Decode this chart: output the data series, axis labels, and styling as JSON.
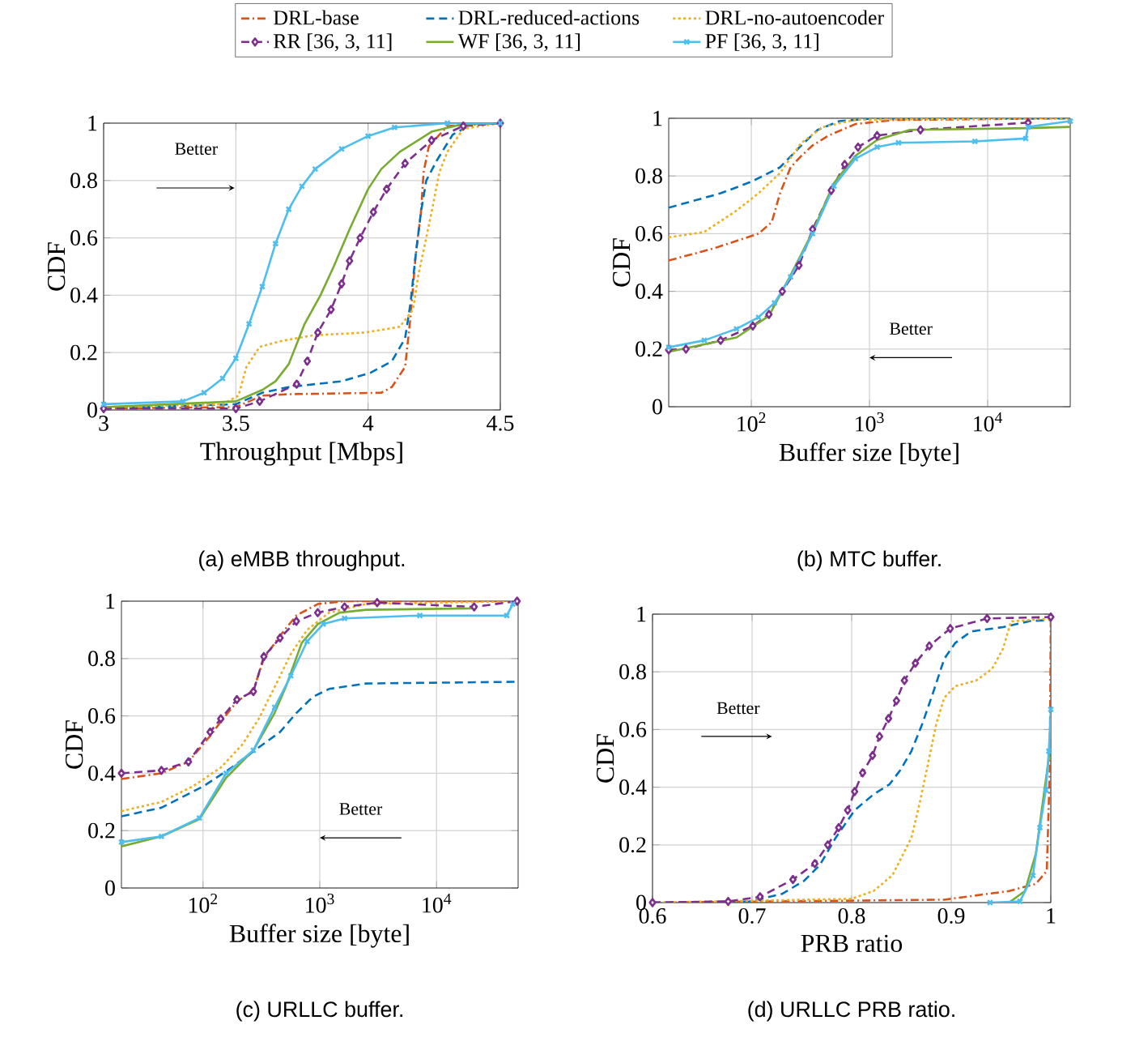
{
  "chart_data": [
    {
      "type": "line",
      "title": "(a) eMBB throughput.",
      "xlabel": "Throughput [Mbps]",
      "ylabel": "CDF",
      "xlim": [
        3,
        4.5
      ],
      "ylim": [
        0,
        1
      ],
      "xticks": [
        3,
        3.5,
        4,
        4.5
      ],
      "yticks": [
        0,
        0.2,
        0.4,
        0.6,
        0.8,
        1
      ],
      "grid": true,
      "legend": "top",
      "annotations": [
        "Better"
      ],
      "series": [
        {
          "name": "DRL-base",
          "color": "#d95319",
          "line_style": "dashdot",
          "marker": "none",
          "x": [
            3,
            3.5,
            3.6,
            3.7,
            4.05,
            4.09,
            4.14,
            4.16,
            4.18,
            4.2,
            4.21,
            4.23,
            4.3,
            4.5
          ],
          "values": [
            0.005,
            0.01,
            0.05,
            0.055,
            0.06,
            0.08,
            0.15,
            0.32,
            0.54,
            0.69,
            0.83,
            0.92,
            0.99,
            1
          ]
        },
        {
          "name": "DRL-reduced-actions",
          "color": "#0072bd",
          "line_style": "dashed",
          "marker": "none",
          "x": [
            3,
            3.5,
            3.6,
            3.7,
            3.9,
            4.01,
            4.09,
            4.14,
            4.16,
            4.18,
            4.2,
            4.22,
            4.26,
            4.32,
            4.4,
            4.5
          ],
          "values": [
            0.005,
            0.02,
            0.06,
            0.08,
            0.1,
            0.13,
            0.17,
            0.25,
            0.37,
            0.54,
            0.69,
            0.8,
            0.87,
            0.96,
            1,
            1
          ]
        },
        {
          "name": "DRL-no-autoencoder",
          "color": "#edb120",
          "line_style": "dotted",
          "marker": "none",
          "x": [
            3,
            3.45,
            3.51,
            3.54,
            3.59,
            3.67,
            3.79,
            3.99,
            4.12,
            4.17,
            4.19,
            4.22,
            4.24,
            4.27,
            4.3,
            4.36,
            4.5
          ],
          "values": [
            0.01,
            0.02,
            0.05,
            0.15,
            0.22,
            0.24,
            0.26,
            0.27,
            0.29,
            0.35,
            0.47,
            0.6,
            0.69,
            0.83,
            0.9,
            0.98,
            1
          ]
        },
        {
          "name": "RR [36, 3, 11]",
          "color": "#7e2f8e",
          "line_style": "dashed",
          "marker": "diamond",
          "x": [
            3,
            3.5,
            3.59,
            3.73,
            3.77,
            3.81,
            3.86,
            3.9,
            3.93,
            3.97,
            4.02,
            4.07,
            4.14,
            4.24,
            4.36,
            4.5
          ],
          "values": [
            0.005,
            0.005,
            0.03,
            0.09,
            0.17,
            0.27,
            0.35,
            0.44,
            0.52,
            0.6,
            0.69,
            0.77,
            0.86,
            0.94,
            0.99,
            1
          ]
        },
        {
          "name": "WF [36, 3, 11]",
          "color": "#77ac30",
          "line_style": "solid",
          "marker": "none",
          "x": [
            3,
            3.5,
            3.6,
            3.65,
            3.7,
            3.76,
            3.82,
            3.87,
            3.93,
            4.0,
            4.05,
            4.12,
            4.24,
            4.35,
            4.5
          ],
          "values": [
            0.01,
            0.03,
            0.07,
            0.1,
            0.16,
            0.3,
            0.4,
            0.5,
            0.63,
            0.77,
            0.84,
            0.9,
            0.97,
            0.995,
            1
          ]
        },
        {
          "name": "PF [36, 3, 11]",
          "color": "#4dbeee",
          "line_style": "solid",
          "marker": "cross",
          "x": [
            3,
            3.3,
            3.38,
            3.45,
            3.5,
            3.55,
            3.6,
            3.65,
            3.7,
            3.75,
            3.8,
            3.9,
            4.0,
            4.1,
            4.3,
            4.5
          ],
          "values": [
            0.02,
            0.03,
            0.06,
            0.11,
            0.18,
            0.3,
            0.43,
            0.58,
            0.7,
            0.78,
            0.84,
            0.91,
            0.955,
            0.985,
            1,
            1
          ]
        }
      ]
    },
    {
      "type": "line",
      "title": "(b) MTC buffer.",
      "xlabel": "Buffer size [byte]",
      "ylabel": "CDF",
      "log": "x",
      "xlim": [
        20,
        50000
      ],
      "ylim": [
        0,
        1
      ],
      "xticks": [
        {
          "value": 100,
          "label": "10$^{2}$"
        },
        {
          "value": 1000,
          "label": "10$^{3}$"
        },
        {
          "value": 10000,
          "label": "10$^{4}$"
        }
      ],
      "yticks": [
        0,
        0.2,
        0.4,
        0.6,
        0.8,
        1
      ],
      "grid": true,
      "annotations": [
        "Better"
      ],
      "series": [
        {
          "color": "#d95319",
          "line_style": "dashdot",
          "marker": "none",
          "x": [
            20,
            49,
            115,
            149,
            175,
            215,
            265,
            330,
            450,
            760,
            1600,
            50000
          ],
          "values": [
            0.507,
            0.55,
            0.6,
            0.64,
            0.74,
            0.83,
            0.87,
            0.906,
            0.94,
            0.98,
            0.994,
            1
          ]
        },
        {
          "color": "#0072bd",
          "line_style": "dashed",
          "marker": "none",
          "x": [
            20,
            55,
            100,
            175,
            265,
            365,
            555,
            1100,
            50000
          ],
          "values": [
            0.69,
            0.74,
            0.78,
            0.83,
            0.906,
            0.96,
            0.99,
            1,
            1
          ]
        },
        {
          "color": "#edb120",
          "line_style": "dotted",
          "marker": "none",
          "x": [
            20,
            40,
            75,
            115,
            175,
            265,
            405,
            760,
            50000
          ],
          "values": [
            0.587,
            0.606,
            0.68,
            0.74,
            0.81,
            0.915,
            0.97,
            0.995,
            1
          ]
        },
        {
          "color": "#7e2f8e",
          "line_style": "dashed",
          "marker": "diamond",
          "x": [
            20,
            28,
            55,
            103,
            141,
            183,
            253,
            330,
            475,
            617,
            800,
            1160,
            2700,
            22000
          ],
          "values": [
            0.197,
            0.2,
            0.23,
            0.28,
            0.32,
            0.4,
            0.49,
            0.615,
            0.75,
            0.84,
            0.9,
            0.94,
            0.96,
            0.985
          ]
        },
        {
          "color": "#77ac30",
          "line_style": "solid",
          "marker": "none",
          "x": [
            20,
            75,
            141,
            215,
            330,
            500,
            760,
            1160,
            2200,
            22000,
            50000
          ],
          "values": [
            0.19,
            0.24,
            0.315,
            0.456,
            0.606,
            0.775,
            0.87,
            0.925,
            0.96,
            0.966,
            0.97
          ]
        },
        {
          "color": "#4dbeee",
          "line_style": "solid",
          "marker": "cross",
          "x": [
            20,
            40,
            75,
            115,
            157,
            215,
            330,
            500,
            760,
            1160,
            1760,
            7800,
            21000,
            22000,
            50000
          ],
          "values": [
            0.206,
            0.23,
            0.27,
            0.31,
            0.36,
            0.45,
            0.6,
            0.765,
            0.86,
            0.9,
            0.915,
            0.92,
            0.93,
            0.97,
            0.99
          ]
        }
      ]
    },
    {
      "type": "line",
      "title": "(c) URLLC buffer.",
      "xlabel": "Buffer size [byte]",
      "ylabel": "CDF",
      "log": "x",
      "xlim": [
        20,
        50000
      ],
      "ylim": [
        0,
        1
      ],
      "xticks": [
        {
          "value": 100,
          "label": "10$^{2}$"
        },
        {
          "value": 1000,
          "label": "10$^{3}$"
        },
        {
          "value": 10000,
          "label": "10$^{4}$"
        }
      ],
      "yticks": [
        0,
        0.2,
        0.4,
        0.6,
        0.8,
        1
      ],
      "grid": true,
      "annotations": [
        "Better"
      ],
      "series": [
        {
          "color": "#d95319",
          "line_style": "dashdot",
          "marker": "none",
          "x": [
            20,
            44,
            75,
            115,
            142,
            195,
            270,
            332,
            457,
            630,
            960,
            1630,
            50000
          ],
          "values": [
            0.38,
            0.4,
            0.44,
            0.53,
            0.58,
            0.65,
            0.69,
            0.8,
            0.88,
            0.95,
            0.99,
            1,
            1
          ]
        },
        {
          "color": "#0072bd",
          "line_style": "dashed",
          "marker": "none",
          "x": [
            20,
            44,
            102,
            176,
            300,
            457,
            630,
            870,
            1200,
            2500,
            50000
          ],
          "values": [
            0.25,
            0.28,
            0.356,
            0.42,
            0.49,
            0.544,
            0.61,
            0.666,
            0.694,
            0.713,
            0.719
          ]
        },
        {
          "color": "#edb120",
          "line_style": "dotted",
          "marker": "none",
          "x": [
            20,
            44,
            83,
            142,
            217,
            300,
            410,
            565,
            780,
            1200,
            2500,
            50000
          ],
          "values": [
            0.268,
            0.3,
            0.356,
            0.42,
            0.5,
            0.59,
            0.7,
            0.816,
            0.9,
            0.96,
            0.99,
            1
          ]
        },
        {
          "color": "#7e2f8e",
          "line_style": "dashed",
          "marker": "diamond",
          "x": [
            20,
            44,
            75,
            115,
            142,
            195,
            270,
            332,
            457,
            630,
            960,
            1630,
            3100,
            21000,
            49000
          ],
          "values": [
            0.4,
            0.41,
            0.44,
            0.544,
            0.59,
            0.657,
            0.685,
            0.807,
            0.872,
            0.93,
            0.96,
            0.98,
            0.995,
            0.98,
            1
          ]
        },
        {
          "color": "#77ac30",
          "line_style": "solid",
          "marker": "none",
          "x": [
            20,
            44,
            93,
            158,
            270,
            410,
            510,
            700,
            960,
            1480,
            2500,
            20000,
            20500
          ],
          "values": [
            0.145,
            0.18,
            0.24,
            0.385,
            0.48,
            0.61,
            0.7,
            0.854,
            0.92,
            0.96,
            0.97,
            0.975,
            0.99
          ]
        },
        {
          "color": "#4dbeee",
          "line_style": "solid",
          "marker": "cross",
          "x": [
            20,
            44,
            93,
            158,
            270,
            410,
            565,
            780,
            1070,
            1630,
            7200,
            40000,
            45000
          ],
          "values": [
            0.16,
            0.18,
            0.244,
            0.4,
            0.48,
            0.63,
            0.74,
            0.86,
            0.92,
            0.94,
            0.95,
            0.95,
            0.99
          ]
        }
      ]
    },
    {
      "type": "line",
      "title": "(d) URLLC PRB ratio.",
      "xlabel": "PRB ratio",
      "ylabel": "CDF",
      "xlim": [
        0.6,
        1
      ],
      "ylim": [
        0,
        1
      ],
      "xticks": [
        0.6,
        0.7,
        0.8,
        0.9,
        1
      ],
      "yticks": [
        0,
        0.2,
        0.4,
        0.6,
        0.8,
        1
      ],
      "grid": true,
      "annotations": [
        "Better"
      ],
      "series": [
        {
          "color": "#d95319",
          "line_style": "dashdot",
          "marker": "none",
          "x": [
            0.6,
            0.893,
            0.958,
            0.985,
            0.996,
            0.999,
            1.0
          ],
          "values": [
            0,
            0.01,
            0.04,
            0.065,
            0.11,
            0.47,
            1
          ]
        },
        {
          "color": "#0072bd",
          "line_style": "dashed",
          "marker": "none",
          "x": [
            0.6,
            0.698,
            0.73,
            0.752,
            0.768,
            0.784,
            0.803,
            0.822,
            0.838,
            0.849,
            0.86,
            0.871,
            0.882,
            0.893,
            0.904,
            0.92,
            0.952,
            0.979,
            1.0
          ],
          "values": [
            0,
            0.004,
            0.03,
            0.075,
            0.13,
            0.225,
            0.32,
            0.375,
            0.41,
            0.46,
            0.525,
            0.62,
            0.73,
            0.845,
            0.9,
            0.94,
            0.955,
            0.976,
            0.98
          ]
        },
        {
          "color": "#edb120",
          "line_style": "dotted",
          "marker": "none",
          "x": [
            0.6,
            0.8,
            0.822,
            0.841,
            0.852,
            0.86,
            0.868,
            0.876,
            0.885,
            0.893,
            0.904,
            0.925,
            0.941,
            0.952,
            0.96,
            1.0
          ],
          "values": [
            0,
            0.013,
            0.04,
            0.095,
            0.17,
            0.225,
            0.34,
            0.47,
            0.62,
            0.71,
            0.75,
            0.77,
            0.81,
            0.88,
            0.975,
            0.985
          ]
        },
        {
          "color": "#7e2f8e",
          "line_style": "dashed",
          "marker": "diamond",
          "x": [
            0.6,
            0.676,
            0.708,
            0.741,
            0.763,
            0.776,
            0.787,
            0.796,
            0.803,
            0.811,
            0.821,
            0.828,
            0.837,
            0.845,
            0.853,
            0.864,
            0.878,
            0.899,
            0.936,
            1.0
          ],
          "values": [
            0,
            0.004,
            0.02,
            0.08,
            0.135,
            0.2,
            0.26,
            0.32,
            0.385,
            0.45,
            0.51,
            0.576,
            0.638,
            0.7,
            0.77,
            0.83,
            0.89,
            0.95,
            0.985,
            0.99
          ]
        },
        {
          "color": "#77ac30",
          "line_style": "solid",
          "marker": "none",
          "x": [
            0.958,
            0.974,
            0.985,
            0.993,
            0.998,
            1.0
          ],
          "values": [
            0,
            0.04,
            0.17,
            0.375,
            0.5,
            0.6
          ]
        },
        {
          "color": "#4dbeee",
          "line_style": "solid",
          "marker": "cross",
          "x": [
            0.939,
            0.969,
            0.982,
            0.989,
            0.995,
            0.998,
            1.0
          ],
          "values": [
            0,
            0.004,
            0.094,
            0.26,
            0.39,
            0.525,
            0.67
          ]
        }
      ]
    }
  ]
}
